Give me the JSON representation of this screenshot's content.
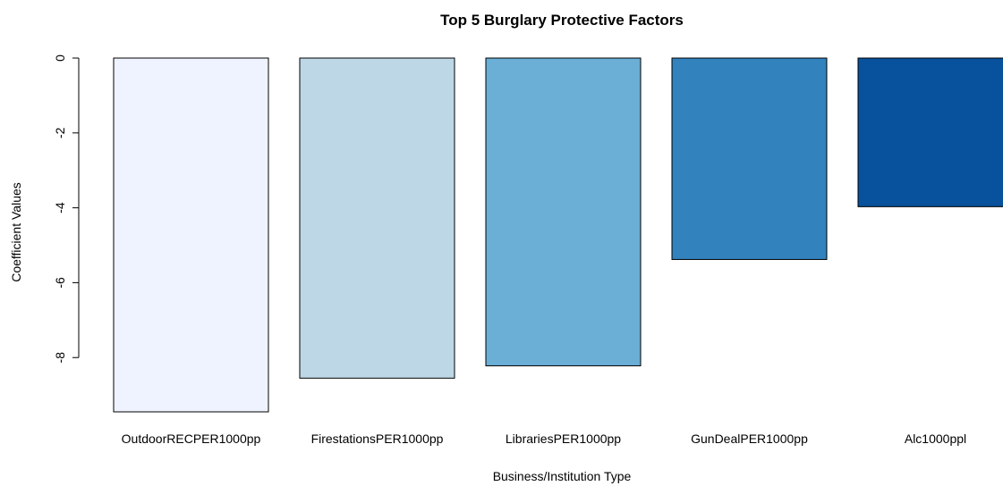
{
  "chart_data": {
    "type": "bar",
    "title": "Top 5 Burglary Protective Factors",
    "xlabel": "Business/Institution Type",
    "ylabel": "Coefficient Values",
    "categories": [
      "OutdoorRECPER1000pp",
      "FirestationsPER1000pp",
      "LibrariesPER1000pp",
      "GunDealPER1000pp",
      "Alc1000ppl"
    ],
    "values": [
      -9.45,
      -8.55,
      -8.22,
      -5.38,
      -3.97
    ],
    "colors": [
      "#EFF3FF",
      "#BDD7E7",
      "#6BAED6",
      "#3182BD",
      "#08519C"
    ],
    "yticks": [
      0,
      -2,
      -4,
      -6,
      -8
    ],
    "ylim": [
      -9.45,
      0
    ],
    "grid": false,
    "legend": "none"
  }
}
